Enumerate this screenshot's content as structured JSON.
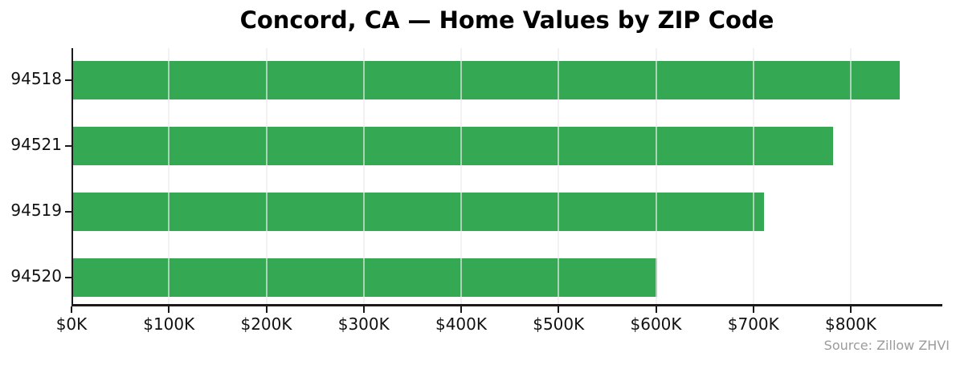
{
  "chart_data": {
    "type": "bar",
    "orientation": "horizontal",
    "title": "Concord, CA — Home Values by ZIP Code",
    "categories": [
      "94518",
      "94521",
      "94519",
      "94520"
    ],
    "values": [
      850000,
      782000,
      711000,
      601000
    ],
    "value_unit": "USD",
    "x_tick_values": [
      0,
      100000,
      200000,
      300000,
      400000,
      500000,
      600000,
      700000,
      800000
    ],
    "x_tick_labels": [
      "$0K",
      "$100K",
      "$200K",
      "$300K",
      "$400K",
      "$500K",
      "$600K",
      "$700K",
      "$800K"
    ],
    "xlim": [
      0,
      894000
    ],
    "grid": true,
    "legend": false,
    "bar_color": "#34a853",
    "gridline_color": "#ebebeb",
    "axis_color": "#1a1a1a",
    "source_note": "Source: Zillow ZHVI"
  }
}
